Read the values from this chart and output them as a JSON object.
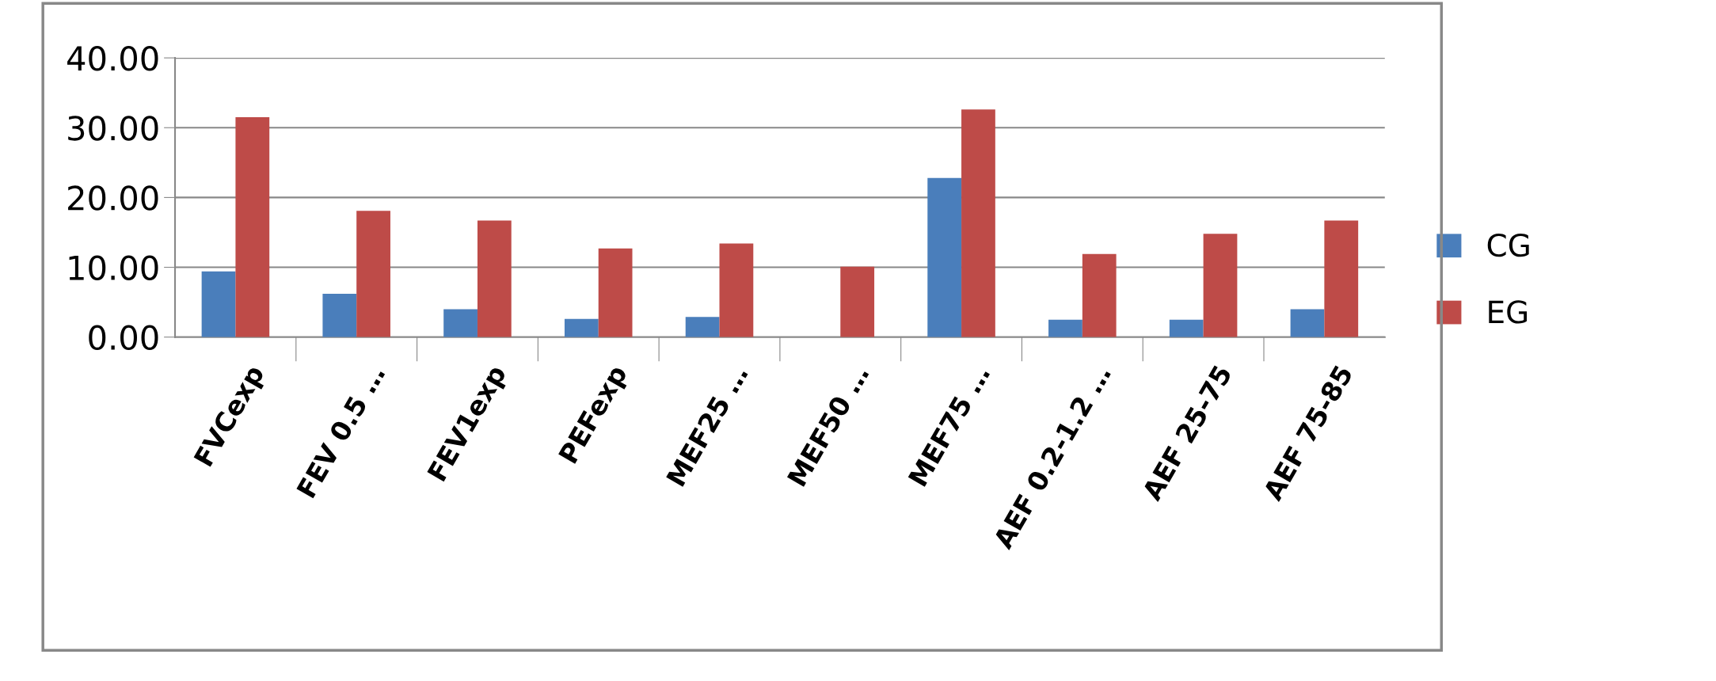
{
  "chart_data": {
    "type": "bar",
    "categories": [
      "FVCexp",
      "FEV 0.5 …",
      "FEV1exp",
      "PEFexp",
      "MEF25 …",
      "MEF50 …",
      "MEF75 …",
      "AEF 0.2-1.2 …",
      "AEF 25-75",
      "AEF 75-85"
    ],
    "series": [
      {
        "name": "CG",
        "color": "#4a7ebb",
        "values": [
          9.4,
          6.2,
          4.0,
          2.6,
          2.9,
          0,
          22.8,
          2.5,
          2.5,
          4.0
        ]
      },
      {
        "name": "EG",
        "color": "#be4b48",
        "values": [
          31.5,
          18.1,
          16.7,
          12.7,
          13.4,
          10.1,
          32.6,
          11.9,
          14.8,
          16.7
        ]
      }
    ],
    "ylim": [
      0,
      40
    ],
    "yticks": [
      {
        "value": 0,
        "label": "0.00"
      },
      {
        "value": 10,
        "label": "10.00"
      },
      {
        "value": 20,
        "label": "20.00"
      },
      {
        "value": 30,
        "label": "30.00"
      },
      {
        "value": 40,
        "label": "40.00"
      }
    ],
    "grid": "y",
    "legend": "right"
  }
}
